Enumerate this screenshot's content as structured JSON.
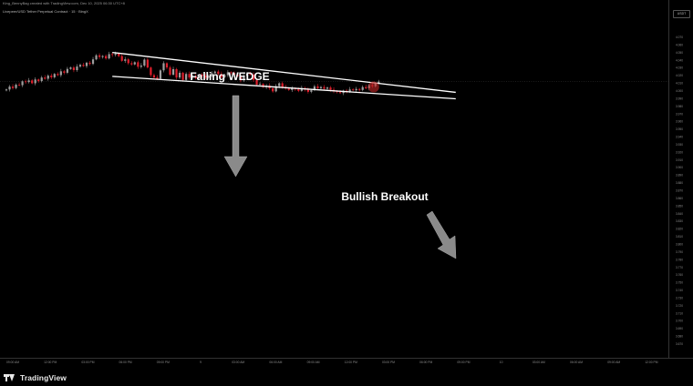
{
  "header": {
    "credit": "King_BennyBag created with TradingView.com, Dec 10, 2025 06:30 UTC+8",
    "symbol": "Livepeer/USD Tether Perpetual Contract · 15 · BingX",
    "currency": "USDT"
  },
  "footer": {
    "brand": "TradingView"
  },
  "colors": {
    "background": "#000000",
    "bull_candle": "#9e9e9e",
    "bear_candle": "#e01e2b",
    "trendline": "#ffffff",
    "arrow": "#8a8a8a",
    "breakout_marker": "#c62828"
  },
  "chart_data": {
    "type": "candlestick",
    "title": "",
    "ylabel": "",
    "xlabel": "",
    "ylim": [
      2.665,
      4.075
    ],
    "y_ticks": [
      "4.070",
      "4.060",
      "4.050",
      "4.040",
      "4.030",
      "4.020",
      "4.010",
      "4.000",
      "3.990",
      "3.980",
      "3.970",
      "3.960",
      "3.950",
      "3.940",
      "3.930",
      "3.920",
      "3.910",
      "3.900",
      "3.890",
      "3.880",
      "3.870",
      "3.860",
      "3.850",
      "3.840",
      "3.830",
      "3.820",
      "3.810",
      "3.800",
      "3.790",
      "3.780",
      "3.770",
      "3.760",
      "3.750",
      "3.740",
      "3.730",
      "3.720",
      "3.710",
      "3.700",
      "3.690",
      "3.680",
      "3.670"
    ],
    "x_ticks": [
      "09:00 AM",
      "12:00 PM",
      "03:00 PM",
      "06:00 PM",
      "09:00 PM",
      "9",
      "03:00 AM",
      "06:00 AM",
      "09:00 AM",
      "12:00 PM",
      "03:00 PM",
      "06:00 PM",
      "09:00 PM",
      "10",
      "03:00 AM",
      "06:00 AM",
      "09:00 AM",
      "12:00 PM"
    ],
    "candles_close": [
      3.75,
      3.762,
      3.756,
      3.77,
      3.768,
      3.784,
      3.781,
      3.788,
      3.776,
      3.792,
      3.785,
      3.8,
      3.795,
      3.808,
      3.801,
      3.815,
      3.81,
      3.826,
      3.82,
      3.836,
      3.842,
      3.831,
      3.846,
      3.853,
      3.848,
      3.862,
      3.857,
      3.876,
      3.893,
      3.886,
      3.89,
      3.88,
      3.898,
      3.895,
      3.9,
      3.89,
      3.87,
      3.876,
      3.86,
      3.855,
      3.864,
      3.845,
      3.85,
      3.875,
      3.842,
      3.81,
      3.8,
      3.795,
      3.83,
      3.86,
      3.842,
      3.812,
      3.835,
      3.8,
      3.82,
      3.79,
      3.815,
      3.8,
      3.806,
      3.797,
      3.812,
      3.808,
      3.8,
      3.806,
      3.818,
      3.825,
      3.815,
      3.802,
      3.81,
      3.822,
      3.819,
      3.812,
      3.805,
      3.788,
      3.807,
      3.817,
      3.812,
      3.79,
      3.77,
      3.773,
      3.76,
      3.766,
      3.755,
      3.742,
      3.764,
      3.776,
      3.76,
      3.754,
      3.748,
      3.755,
      3.751,
      3.744,
      3.756,
      3.75,
      3.74,
      3.747,
      3.763,
      3.755,
      3.76,
      3.753,
      3.758,
      3.749,
      3.742,
      3.739,
      3.735,
      3.745,
      3.741,
      3.75,
      3.747,
      3.752,
      3.748,
      3.76,
      3.755,
      3.768,
      3.764,
      3.776,
      3.783
    ],
    "trendlines": [
      {
        "name": "upper wedge line",
        "from": {
          "x_index": 33,
          "y": 3.905
        },
        "to": {
          "x_index": 140,
          "y": 3.738
        }
      },
      {
        "name": "lower wedge line",
        "from": {
          "x_index": 33,
          "y": 3.805
        },
        "to": {
          "x_index": 140,
          "y": 3.711
        }
      }
    ],
    "annotations": [
      {
        "text": "Falling WEDGE"
      },
      {
        "text": "Bullish Breakout"
      }
    ],
    "grid": false,
    "current_price_line": 3.783
  }
}
